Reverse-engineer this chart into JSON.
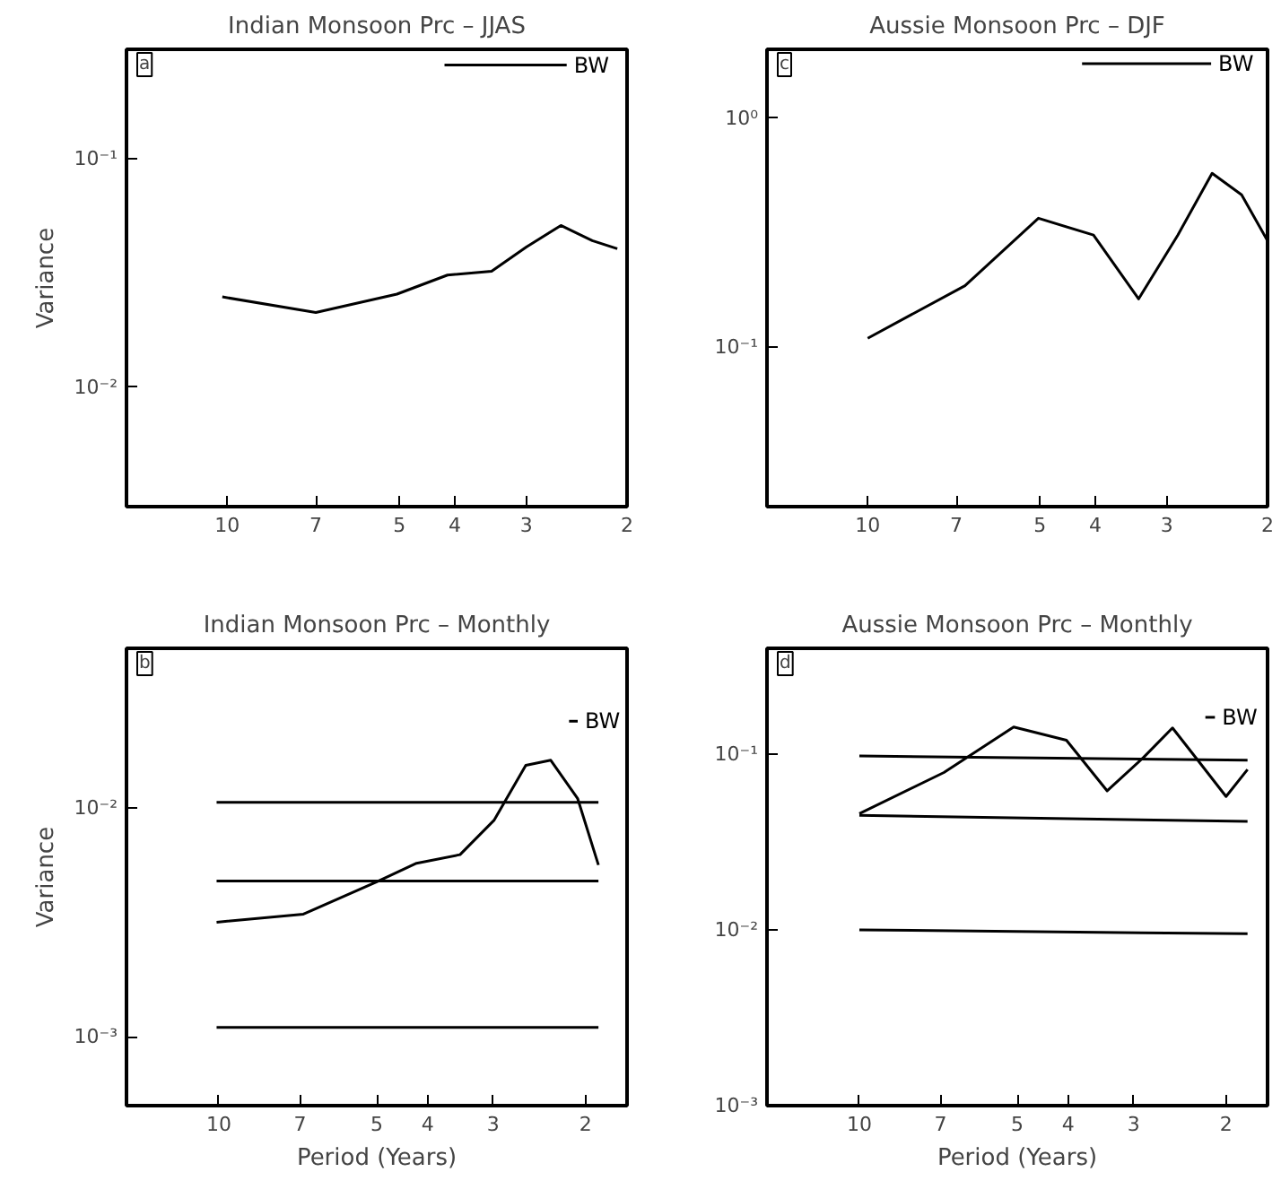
{
  "chart_data": [
    {
      "type": "line",
      "title": "Indian Monsoon Prc – JJAS",
      "ylabel": "Variance",
      "annotations": [
        "a"
      ],
      "log": "xy",
      "grid": false,
      "tick_labels": "xy",
      "xlim": [
        15,
        2
      ],
      "xticks": [
        10,
        7,
        5,
        4,
        3,
        2
      ],
      "ylim": [
        0.003,
        0.3
      ],
      "yticks": [
        {
          "value": 0.01,
          "label": "10⁻²"
        },
        {
          "value": 0.1,
          "label": "10⁻¹"
        }
      ],
      "series": [
        {
          "color": "#000000",
          "x": [
            10.2,
            7.0,
            5.05,
            4.12,
            3.45,
            3.0,
            2.61,
            2.3,
            2.08
          ],
          "values": [
            0.0248,
            0.0212,
            0.0255,
            0.0309,
            0.0321,
            0.041,
            0.0509,
            0.0437,
            0.0403
          ]
        },
        {
          "name": "BW",
          "color": "#000000",
          "x": [
            4.17,
            2.55
          ],
          "values": [
            0.256,
            0.256
          ]
        }
      ]
    },
    {
      "type": "line",
      "title": "Aussie Monsoon Prc – DJF",
      "annotations": [
        "c"
      ],
      "log": "xy",
      "grid": false,
      "xlim": [
        15,
        2
      ],
      "xticks": [
        10,
        7,
        5,
        4,
        3,
        2
      ],
      "ylim": [
        0.02,
        2
      ],
      "yticks": [
        {
          "value": 0.1,
          "label": "10⁻¹"
        },
        {
          "value": 1,
          "label": "10⁰"
        }
      ],
      "series": [
        {
          "color": "#000000",
          "x": [
            10,
            6.76,
            5.03,
            4.03,
            3.36,
            2.87,
            2.5,
            2.22,
            2
          ],
          "values": [
            0.109,
            0.185,
            0.365,
            0.308,
            0.162,
            0.308,
            0.574,
            0.462,
            0.291
          ]
        },
        {
          "name": "BW",
          "color": "#000000",
          "x": [
            4.22,
            2.51
          ],
          "values": [
            1.73,
            1.73
          ]
        }
      ]
    },
    {
      "type": "line",
      "title": "Indian Monsoon Prc – Monthly",
      "xlabel": "Period (Years)",
      "ylabel": "Variance",
      "annotations": [
        "b"
      ],
      "log": "xy",
      "grid": false,
      "xlim": [
        15,
        1.667
      ],
      "xticks": [
        10,
        7,
        5,
        4,
        3,
        2
      ],
      "ylim": [
        0.0005,
        0.05
      ],
      "yticks": [
        {
          "value": 0.001,
          "label": "10⁻³"
        },
        {
          "value": 0.01,
          "label": "10⁻²"
        }
      ],
      "series": [
        {
          "color": "#000000",
          "x": [
            10.1,
            6.9,
            5,
            4.2,
            3.47,
            2.99,
            2.6,
            2.33,
            2.07,
            1.89
          ],
          "values": [
            0.00317,
            0.00344,
            0.00476,
            0.00574,
            0.00626,
            0.00884,
            0.0154,
            0.0162,
            0.011,
            0.00564
          ]
        },
        {
          "color": "#000000",
          "x": [
            10.1,
            1.89
          ],
          "values": [
            0.0106,
            0.0106
          ]
        },
        {
          "color": "#000000",
          "x": [
            10.1,
            1.89
          ],
          "values": [
            0.0048,
            0.0048
          ]
        },
        {
          "color": "#000000",
          "x": [
            10.1,
            1.89
          ],
          "values": [
            0.0011,
            0.0011
          ]
        },
        {
          "name": "BW",
          "color": "#000000",
          "x": [
            2.15,
            2.07
          ],
          "values": [
            0.024,
            0.024
          ]
        }
      ]
    },
    {
      "type": "line",
      "title": "Aussie Monsoon Prc – Monthly",
      "xlabel": "Period (Years)",
      "annotations": [
        "d"
      ],
      "log": "xy",
      "grid": false,
      "xlim": [
        15,
        1.667
      ],
      "xticks": [
        10,
        7,
        5,
        4,
        3,
        2
      ],
      "ylim": [
        0.001,
        0.4
      ],
      "yticks": [
        {
          "value": 0.001,
          "label": "10⁻³"
        },
        {
          "value": 0.01,
          "label": "10⁻²"
        },
        {
          "value": 0.1,
          "label": "10⁻¹"
        }
      ],
      "series": [
        {
          "color": "#000000",
          "x": [
            10,
            6.9,
            5.08,
            4.03,
            3.37,
            2.87,
            2.53,
            2.24,
            2.0,
            1.82
          ],
          "values": [
            0.0458,
            0.0786,
            0.1426,
            0.12,
            0.0618,
            0.0961,
            0.141,
            0.0887,
            0.0574,
            0.0818
          ]
        },
        {
          "color": "#000000",
          "x": [
            10,
            1.82
          ],
          "values": [
            0.0976,
            0.0923
          ]
        },
        {
          "color": "#000000",
          "x": [
            10,
            1.82
          ],
          "values": [
            0.0448,
            0.0414
          ]
        },
        {
          "color": "#000000",
          "x": [
            10,
            1.82
          ],
          "values": [
            0.01,
            0.0095
          ]
        },
        {
          "name": "BW",
          "color": "#000000",
          "x": [
            2.19,
            2.1
          ],
          "values": [
            0.162,
            0.162
          ]
        }
      ]
    }
  ]
}
